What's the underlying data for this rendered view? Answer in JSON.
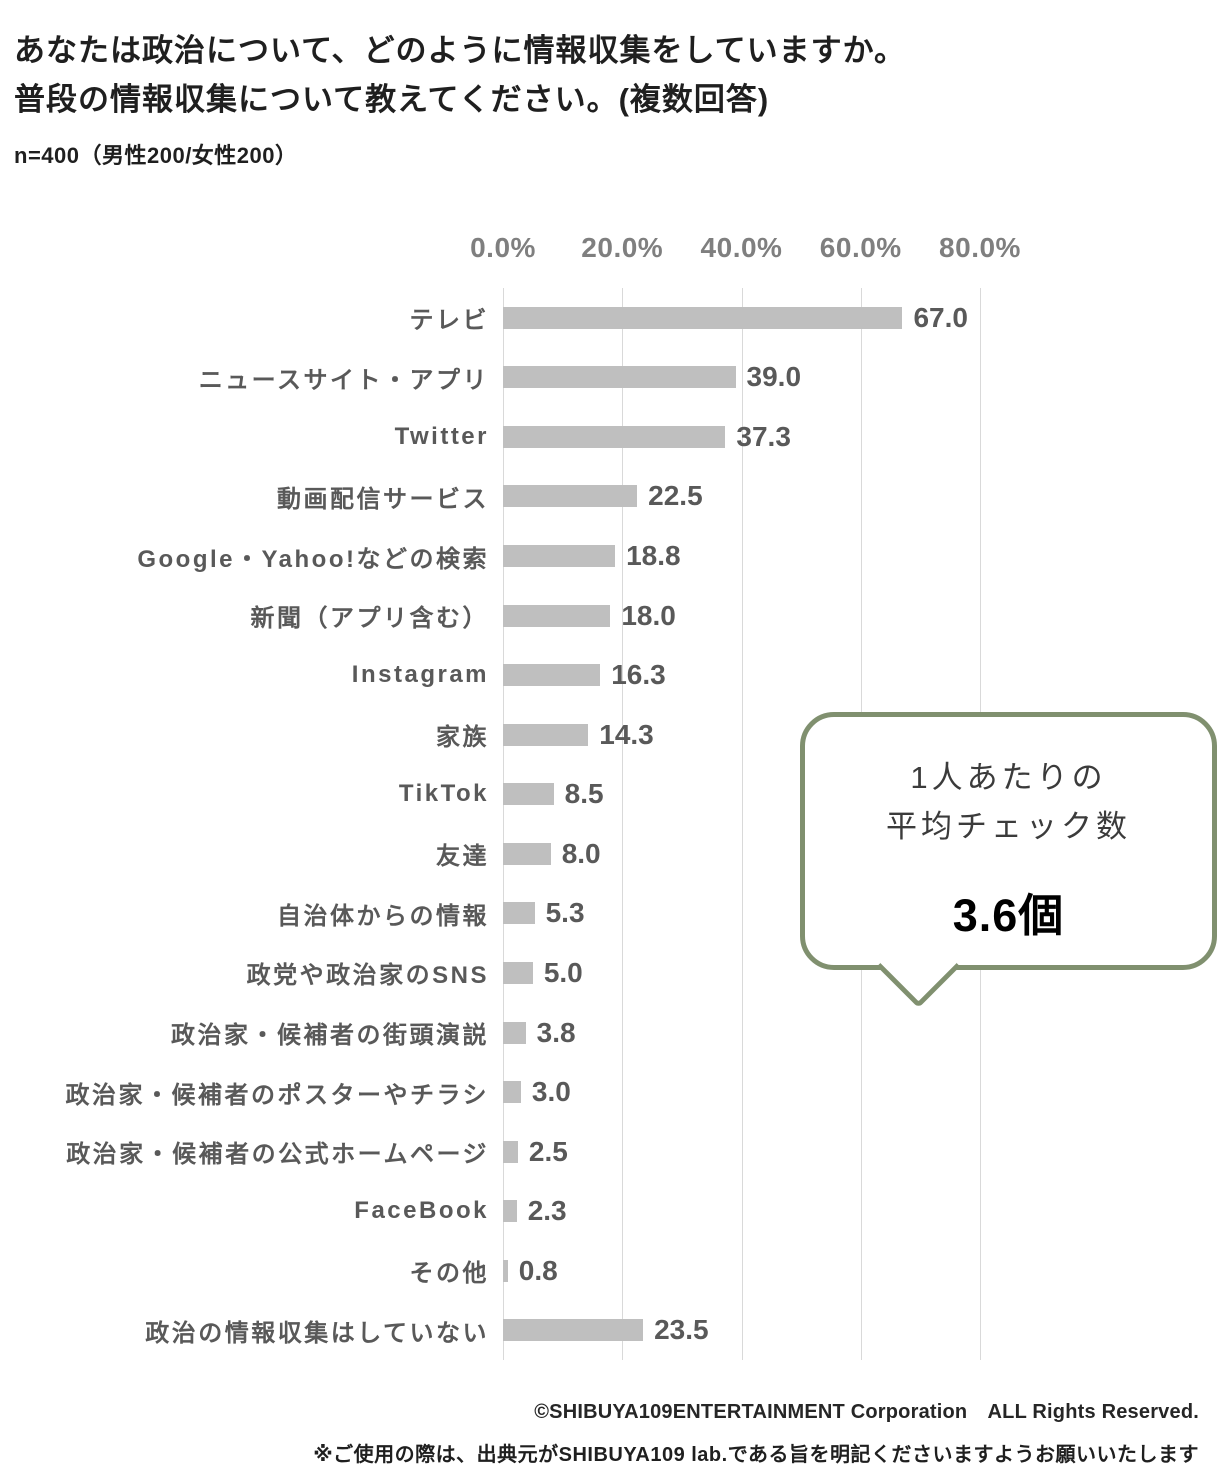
{
  "header": {
    "title_line1": "あなたは政治について、どのように情報収集をしていますか。",
    "title_line2": "普段の情報収集について教えてください。(複数回答)",
    "sample_note": "n=400（男性200/女性200）"
  },
  "chart_data": {
    "type": "bar",
    "orientation": "horizontal",
    "title": "あなたは政治について、どのように情報収集をしていますか。普段の情報収集について教えてください。(複数回答)",
    "categories": [
      "テレビ",
      "ニュースサイト・アプリ",
      "Twitter",
      "動画配信サービス",
      "Google・Yahoo!などの検索",
      "新聞（アプリ含む）",
      "Instagram",
      "家族",
      "TikTok",
      "友達",
      "自治体からの情報",
      "政党や政治家のSNS",
      "政治家・候補者の街頭演説",
      "政治家・候補者のポスターやチラシ",
      "政治家・候補者の公式ホームページ",
      "FaceBook",
      "その他",
      "政治の情報収集はしていない"
    ],
    "values": [
      67.0,
      39.0,
      37.3,
      22.5,
      18.8,
      18.0,
      16.3,
      14.3,
      8.5,
      8.0,
      5.3,
      5.0,
      3.8,
      3.0,
      2.5,
      2.3,
      0.8,
      23.5
    ],
    "xlabel": "",
    "ylabel": "",
    "xlim": [
      0,
      80
    ],
    "tick_labels": [
      "0.0%",
      "20.0%",
      "40.0%",
      "60.0%",
      "80.0%"
    ],
    "tick_values": [
      0,
      20,
      40,
      60,
      80
    ],
    "grid": true,
    "legend": false,
    "bar_color": "#bfbfbf",
    "gridline_color": "#d9d9d9",
    "label_color": "#595959"
  },
  "callout": {
    "heading_line1": "1人あたりの",
    "heading_line2": "平均チェック数",
    "value": "3.6個",
    "border_color": "#80906f"
  },
  "footer": {
    "copyright": "©SHIBUYA109ENTERTAINMENT Corporation　ALL Rights Reserved.",
    "usage_note": "※ご使用の際は、出典元がSHIBUYA109 lab.である旨を明記くださいますようお願いいたします"
  }
}
